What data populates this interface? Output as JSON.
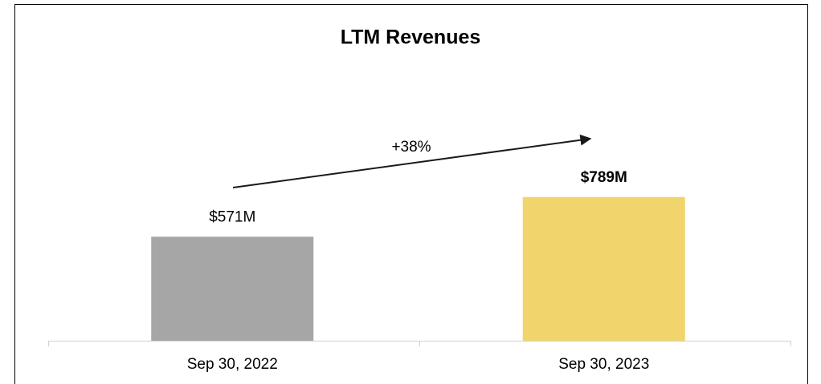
{
  "chart_data": {
    "type": "bar",
    "title": "LTM Revenues",
    "categories": [
      "Sep 30, 2022",
      "Sep 30, 2023"
    ],
    "values": [
      571,
      789
    ],
    "value_labels": [
      "$571M",
      "$789M"
    ],
    "colors": [
      "#a6a6a6",
      "#f2d46c"
    ],
    "annotation": "+38%"
  }
}
